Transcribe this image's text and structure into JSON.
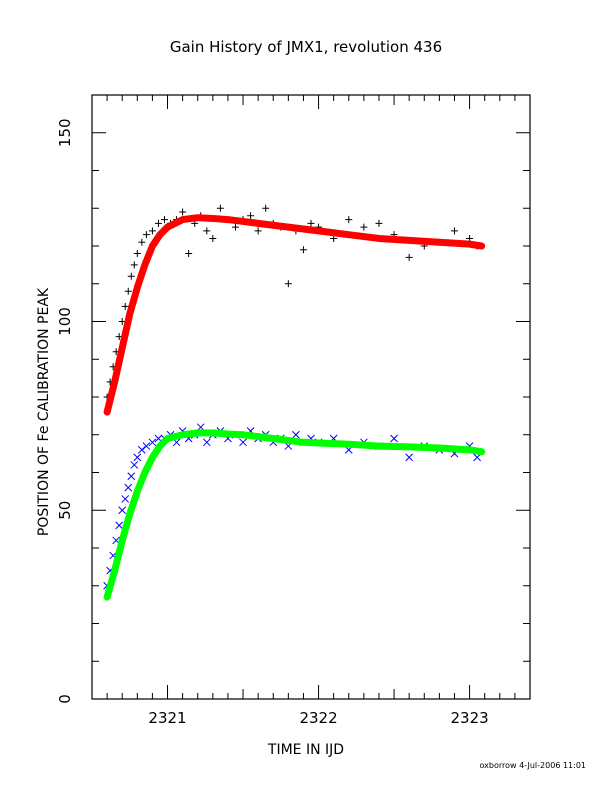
{
  "chart_data": {
    "type": "scatter",
    "title": "Gain History of JMX1, revolution 436",
    "xlabel": "TIME IN IJD",
    "ylabel": "POSITION OF Fe CALIBRATION PEAK",
    "xlim": [
      2320.5,
      2323.4
    ],
    "ylim": [
      0,
      160
    ],
    "x_ticks": [
      2321,
      2322,
      2323
    ],
    "y_ticks": [
      0,
      50,
      100,
      150
    ],
    "grid": false,
    "legend": "none",
    "footer": "oxborrow  4-Jul-2006 11:01",
    "series": [
      {
        "marker": "+",
        "color": "#000000",
        "x": [
          2320.6,
          2320.62,
          2320.64,
          2320.66,
          2320.68,
          2320.7,
          2320.72,
          2320.74,
          2320.76,
          2320.78,
          2320.8,
          2320.83,
          2320.86,
          2320.9,
          2320.94,
          2320.98,
          2321.02,
          2321.06,
          2321.1,
          2321.14,
          2321.18,
          2321.22,
          2321.26,
          2321.3,
          2321.35,
          2321.4,
          2321.45,
          2321.5,
          2321.55,
          2321.6,
          2321.65,
          2321.7,
          2321.75,
          2321.8,
          2321.85,
          2321.9,
          2321.95,
          2322.0,
          2322.1,
          2322.2,
          2322.3,
          2322.4,
          2322.5,
          2322.6,
          2322.7,
          2322.8,
          2322.9,
          2323.0,
          2323.05
        ],
        "y": [
          80,
          84,
          88,
          92,
          96,
          100,
          104,
          108,
          112,
          115,
          118,
          121,
          123,
          124,
          126,
          127,
          126,
          127,
          129,
          118,
          126,
          128,
          124,
          122,
          130,
          127,
          125,
          127,
          128,
          124,
          130,
          126,
          125,
          110,
          124,
          119,
          126,
          125,
          122,
          127,
          125,
          126,
          123,
          117,
          120,
          121,
          124,
          122,
          120
        ]
      },
      {
        "marker": "×",
        "color": "#0000ff",
        "x": [
          2320.6,
          2320.62,
          2320.64,
          2320.66,
          2320.68,
          2320.7,
          2320.72,
          2320.74,
          2320.76,
          2320.78,
          2320.8,
          2320.83,
          2320.86,
          2320.9,
          2320.94,
          2320.98,
          2321.02,
          2321.06,
          2321.1,
          2321.14,
          2321.18,
          2321.22,
          2321.26,
          2321.3,
          2321.35,
          2321.4,
          2321.45,
          2321.5,
          2321.55,
          2321.6,
          2321.65,
          2321.7,
          2321.75,
          2321.8,
          2321.85,
          2321.9,
          2321.95,
          2322.0,
          2322.1,
          2322.2,
          2322.3,
          2322.4,
          2322.5,
          2322.6,
          2322.7,
          2322.8,
          2322.9,
          2323.0,
          2323.05
        ],
        "y": [
          30,
          34,
          38,
          42,
          46,
          50,
          53,
          56,
          59,
          62,
          64,
          66,
          67,
          68,
          69,
          69,
          70,
          68,
          71,
          69,
          70,
          72,
          68,
          70,
          71,
          69,
          70,
          68,
          71,
          69,
          70,
          68,
          69,
          67,
          70,
          68,
          69,
          68,
          69,
          66,
          68,
          67,
          69,
          64,
          67,
          66,
          65,
          67,
          64
        ]
      },
      {
        "marker": "line",
        "color": "#ff0000",
        "x": [
          2320.6,
          2320.65,
          2320.7,
          2320.75,
          2320.8,
          2320.85,
          2320.9,
          2320.95,
          2321.0,
          2321.1,
          2321.2,
          2321.3,
          2321.4,
          2321.5,
          2321.6,
          2321.7,
          2321.8,
          2321.9,
          2322.0,
          2322.2,
          2322.4,
          2322.6,
          2322.8,
          2323.0,
          2323.08
        ],
        "y": [
          76,
          84,
          93,
          102,
          109,
          115,
          120,
          123,
          125,
          127,
          127.5,
          127.3,
          127,
          126.5,
          126,
          125.5,
          125,
          124.5,
          124,
          123,
          122,
          121.5,
          121,
          120.5,
          120
        ]
      },
      {
        "marker": "line",
        "color": "#00ff00",
        "x": [
          2320.6,
          2320.65,
          2320.7,
          2320.75,
          2320.8,
          2320.85,
          2320.9,
          2320.95,
          2321.0,
          2321.1,
          2321.2,
          2321.3,
          2321.4,
          2321.5,
          2321.6,
          2321.7,
          2321.8,
          2321.9,
          2322.0,
          2322.2,
          2322.4,
          2322.6,
          2322.8,
          2323.0,
          2323.08
        ],
        "y": [
          27,
          34,
          42,
          49,
          55,
          60,
          64,
          67,
          69,
          70,
          70.5,
          70.5,
          70.2,
          70,
          69.5,
          69,
          68.5,
          68,
          67.8,
          67.5,
          67,
          66.8,
          66.5,
          66,
          65.5
        ]
      }
    ]
  }
}
